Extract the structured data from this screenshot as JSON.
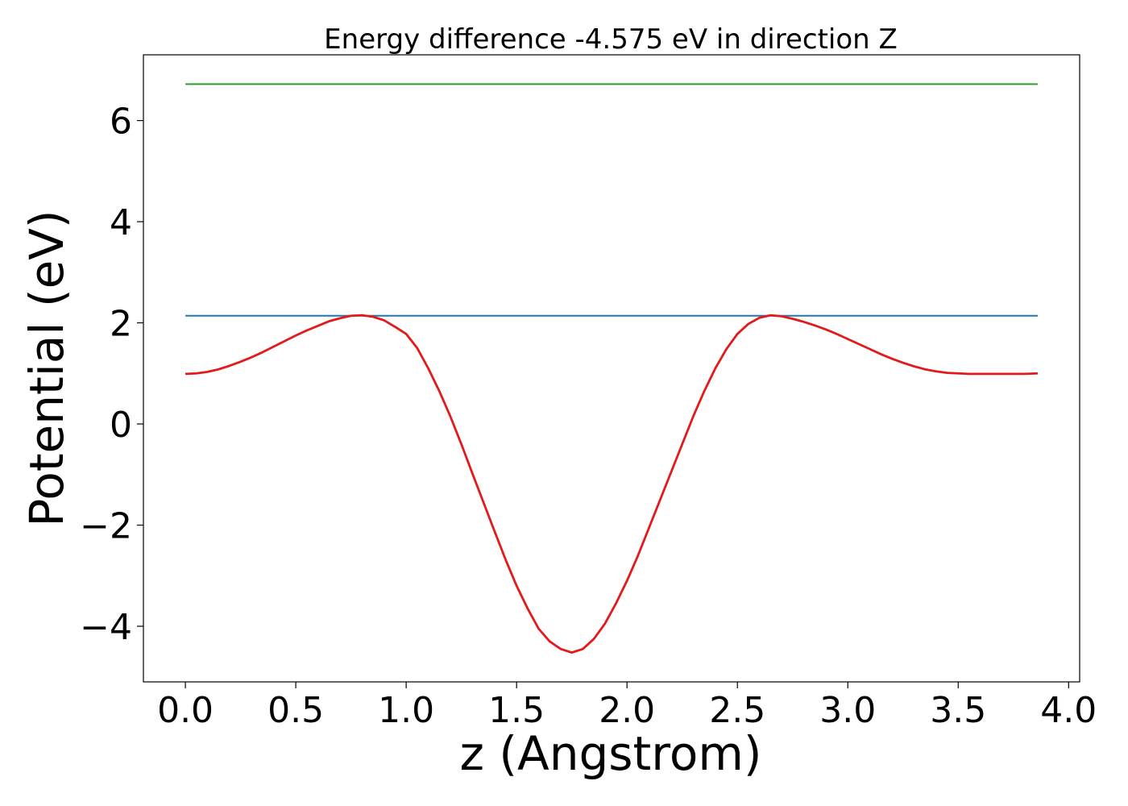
{
  "chart_data": {
    "type": "line",
    "title": "Energy difference -4.575 eV in direction Z",
    "xlabel": "z (Angstrom)",
    "ylabel": "Potential (eV)",
    "xlim": [
      -0.19,
      4.05
    ],
    "ylim": [
      -5.1,
      7.3
    ],
    "xticks": [
      {
        "value": 0.0,
        "label": "0.0"
      },
      {
        "value": 0.5,
        "label": "0.5"
      },
      {
        "value": 1.0,
        "label": "1.0"
      },
      {
        "value": 1.5,
        "label": "1.5"
      },
      {
        "value": 2.0,
        "label": "2.0"
      },
      {
        "value": 2.5,
        "label": "2.5"
      },
      {
        "value": 3.0,
        "label": "3.0"
      },
      {
        "value": 3.5,
        "label": "3.5"
      },
      {
        "value": 4.0,
        "label": "4.0"
      }
    ],
    "yticks": [
      {
        "value": -4,
        "label": "−4"
      },
      {
        "value": -2,
        "label": "−2"
      },
      {
        "value": 0,
        "label": "0"
      },
      {
        "value": 2,
        "label": "2"
      },
      {
        "value": 4,
        "label": "4"
      },
      {
        "value": 6,
        "label": "6"
      }
    ],
    "grid": false,
    "legend": "none",
    "series": [
      {
        "color": "#2ca02c",
        "x": [
          0.0,
          3.86
        ],
        "y": [
          6.72,
          6.72
        ]
      },
      {
        "color": "#1f77b4",
        "x": [
          0.0,
          3.86
        ],
        "y": [
          2.14,
          2.14
        ]
      },
      {
        "color": "#e31a1c",
        "x": [
          0.0,
          0.05,
          0.1,
          0.15,
          0.2,
          0.25,
          0.3,
          0.35,
          0.4,
          0.45,
          0.5,
          0.55,
          0.6,
          0.65,
          0.7,
          0.75,
          0.8,
          0.85,
          0.9,
          0.95,
          1.0,
          1.05,
          1.1,
          1.15,
          1.2,
          1.25,
          1.3,
          1.35,
          1.4,
          1.45,
          1.5,
          1.55,
          1.6,
          1.65,
          1.7,
          1.75,
          1.8,
          1.85,
          1.9,
          1.95,
          2.0,
          2.05,
          2.1,
          2.15,
          2.2,
          2.25,
          2.3,
          2.35,
          2.4,
          2.45,
          2.5,
          2.55,
          2.6,
          2.65,
          2.7,
          2.75,
          2.8,
          2.85,
          2.9,
          2.95,
          3.0,
          3.05,
          3.1,
          3.15,
          3.2,
          3.25,
          3.3,
          3.35,
          3.4,
          3.45,
          3.5,
          3.55,
          3.6,
          3.65,
          3.7,
          3.75,
          3.8,
          3.86
        ],
        "y": [
          0.99,
          1.0,
          1.03,
          1.08,
          1.15,
          1.23,
          1.32,
          1.42,
          1.53,
          1.64,
          1.75,
          1.85,
          1.94,
          2.03,
          2.09,
          2.14,
          2.15,
          2.12,
          2.05,
          1.92,
          1.78,
          1.5,
          1.1,
          0.65,
          0.15,
          -0.4,
          -0.98,
          -1.55,
          -2.12,
          -2.68,
          -3.2,
          -3.65,
          -4.05,
          -4.3,
          -4.45,
          -4.52,
          -4.45,
          -4.25,
          -3.95,
          -3.55,
          -3.1,
          -2.6,
          -2.05,
          -1.5,
          -0.95,
          -0.4,
          0.15,
          0.65,
          1.1,
          1.48,
          1.78,
          1.98,
          2.1,
          2.15,
          2.13,
          2.08,
          2.02,
          1.95,
          1.87,
          1.78,
          1.68,
          1.58,
          1.48,
          1.38,
          1.29,
          1.21,
          1.14,
          1.08,
          1.04,
          1.01,
          1.0,
          0.99,
          0.99,
          0.99,
          0.99,
          0.99,
          0.99,
          1.0
        ]
      }
    ]
  }
}
